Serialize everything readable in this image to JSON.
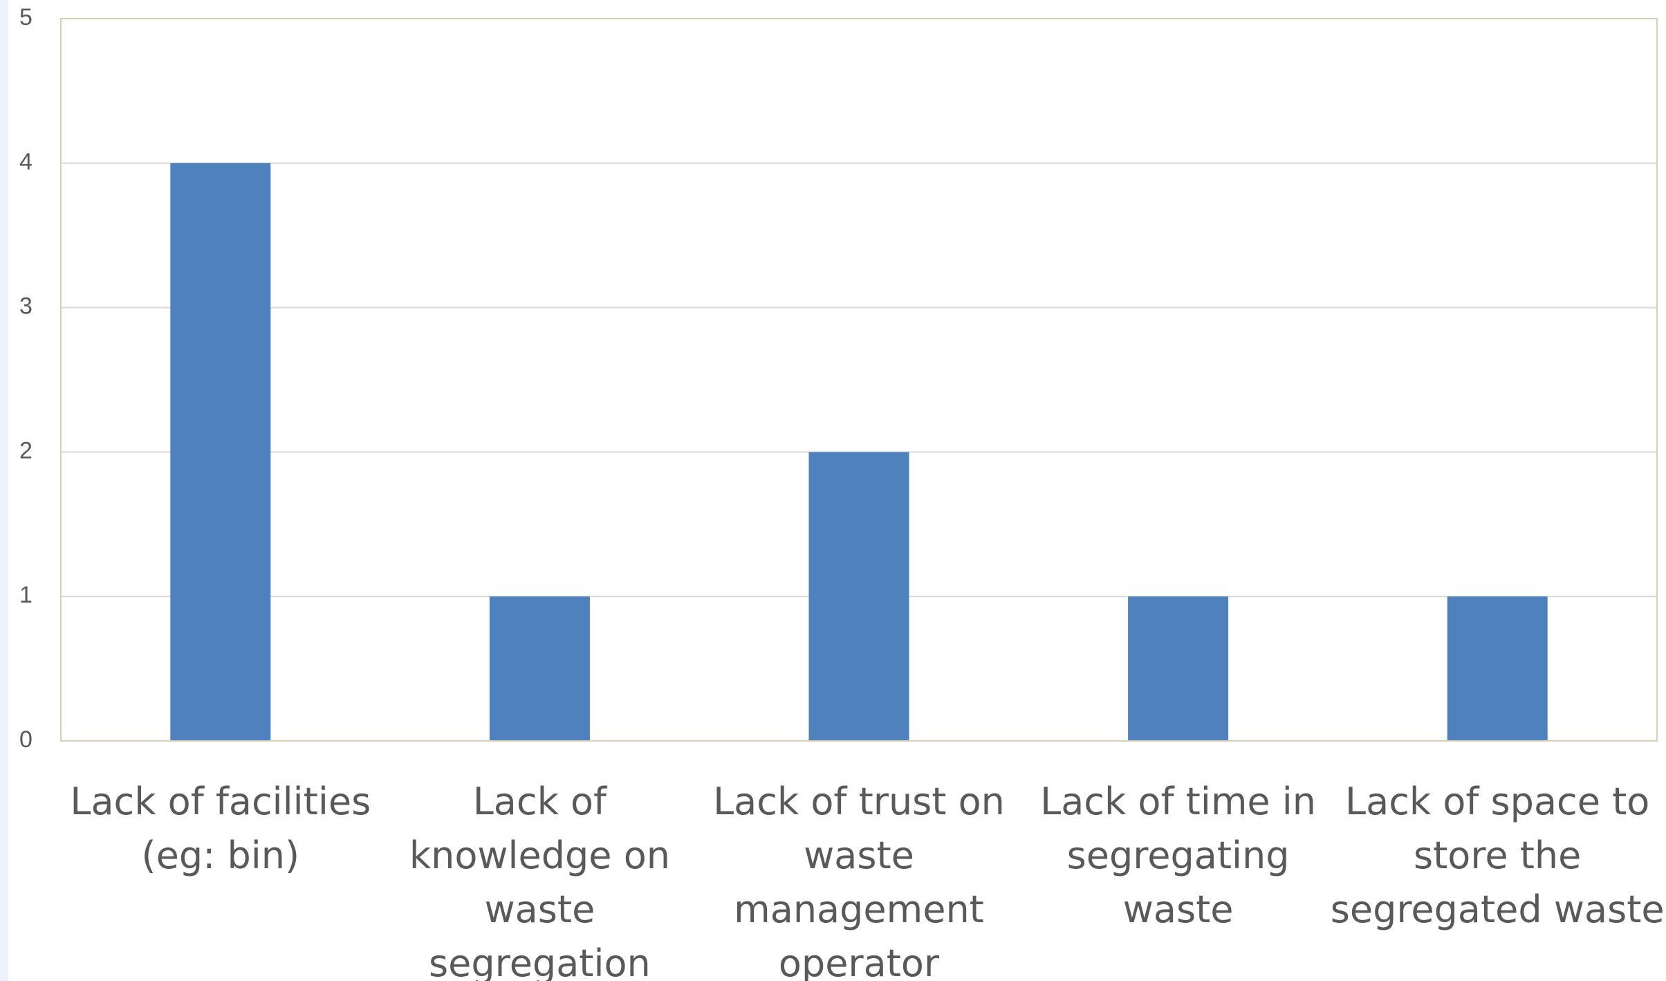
{
  "chart_data": {
    "type": "bar",
    "categories": [
      [
        "Lack of facilities",
        "(eg: bin)"
      ],
      [
        "Lack of",
        "knowledge on",
        "waste",
        "segregation"
      ],
      [
        "Lack of trust on",
        "waste",
        "management",
        "operator"
      ],
      [
        "Lack of time in",
        "segregating",
        "waste"
      ],
      [
        "Lack of space to",
        "store the",
        "segregated waste"
      ]
    ],
    "values": [
      4,
      1,
      2,
      1,
      1
    ],
    "ylim": [
      0,
      5
    ],
    "yticks": [
      0,
      1,
      2,
      3,
      4,
      5
    ],
    "grid": true,
    "title": "",
    "xlabel": "",
    "ylabel": "",
    "colors": {
      "bar": "#4f81bd",
      "grid": "#d9d9d9",
      "frame": "#d9d0b8",
      "text": "#595959"
    }
  }
}
